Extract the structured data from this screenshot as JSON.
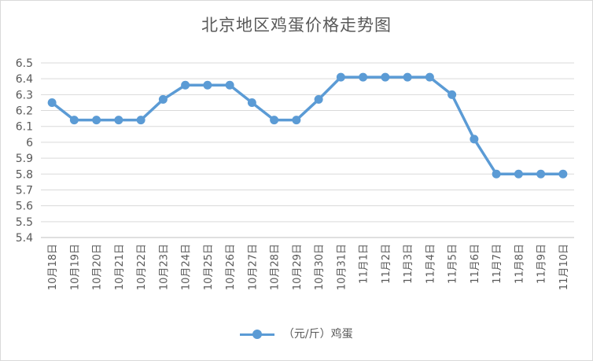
{
  "chart_data": {
    "type": "line",
    "title": "北京地区鸡蛋价格走势图",
    "xlabel": "",
    "ylabel": "",
    "categories": [
      "10月18日",
      "10月19日",
      "10月20日",
      "10月21日",
      "10月22日",
      "10月23日",
      "10月24日",
      "10月25日",
      "10月26日",
      "10月27日",
      "10月28日",
      "10月29日",
      "10月30日",
      "10月31日",
      "11月1日",
      "11月2日",
      "11月3日",
      "11月4日",
      "11月5日",
      "11月6日",
      "11月7日",
      "11月8日",
      "11月9日",
      "11月10日"
    ],
    "series": [
      {
        "name": "（元/斤）鸡蛋",
        "values": [
          6.25,
          6.14,
          6.14,
          6.14,
          6.14,
          6.27,
          6.36,
          6.36,
          6.36,
          6.25,
          6.14,
          6.14,
          6.27,
          6.41,
          6.41,
          6.41,
          6.41,
          6.41,
          6.3,
          6.02,
          5.8,
          5.8,
          5.8,
          5.8
        ]
      }
    ],
    "ylim": [
      5.4,
      6.5
    ],
    "yticks": [
      "5.4",
      "5.5",
      "5.6",
      "5.7",
      "5.8",
      "5.9",
      "6",
      "6.1",
      "6.2",
      "6.3",
      "6.4",
      "6.5"
    ],
    "grid": true,
    "legend": "bottom-center",
    "color": "#5b9bd5"
  }
}
